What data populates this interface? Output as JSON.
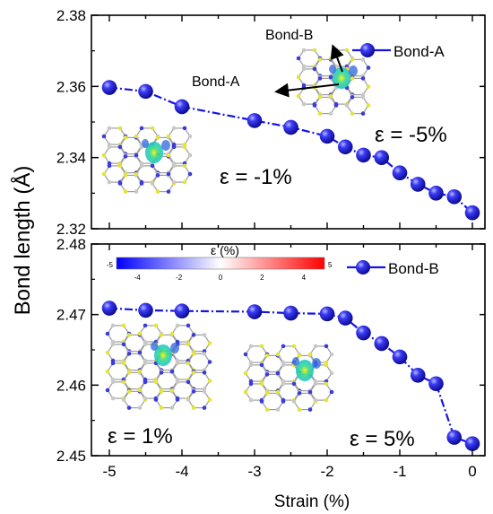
{
  "figure": {
    "ylabel": "Bond length (Å)",
    "xlabel": "Strain (%)",
    "colorbar": {
      "title": "ε (%)",
      "ticks": [
        "-5",
        "-4",
        "-2",
        "0",
        "2",
        "4",
        "5"
      ],
      "colors": {
        "low": "#0000ff",
        "mid": "#ffffff",
        "high": "#ff0000"
      }
    },
    "marker_color": "#1414e6"
  },
  "chart_data": [
    {
      "type": "line",
      "panel": "top",
      "ylim": [
        2.32,
        2.38
      ],
      "xlim": [
        -5,
        0
      ],
      "yticks": [
        "2.32",
        "2.34",
        "2.36",
        "2.38"
      ],
      "series": [
        {
          "name": "Bond-A",
          "x": [
            -5.0,
            -4.5,
            -4.0,
            -3.0,
            -2.5,
            -2.0,
            -1.75,
            -1.5,
            -1.25,
            -1.0,
            -0.75,
            -0.5,
            -0.25,
            0.0
          ],
          "values": [
            2.3597,
            2.3586,
            2.3543,
            2.3504,
            2.3485,
            2.346,
            2.343,
            2.3407,
            2.34,
            2.3357,
            2.3325,
            2.33,
            2.329,
            2.3245
          ]
        }
      ],
      "annotations": [
        "Bond-B",
        "Bond-A",
        "ε = -5%",
        "ε = -1%"
      ]
    },
    {
      "type": "line",
      "panel": "bottom",
      "ylim": [
        2.45,
        2.48
      ],
      "xlim": [
        -5,
        0
      ],
      "yticks": [
        "2.45",
        "2.46",
        "2.47",
        "2.48"
      ],
      "xticks": [
        "-5",
        "-4",
        "-3",
        "-2",
        "-1",
        "0"
      ],
      "series": [
        {
          "name": "Bond-B",
          "x": [
            -5.0,
            -4.5,
            -4.0,
            -3.0,
            -2.5,
            -2.0,
            -1.75,
            -1.5,
            -1.25,
            -1.0,
            -0.75,
            -0.5,
            -0.25,
            0.0
          ],
          "values": [
            2.4709,
            2.4706,
            2.4705,
            2.4704,
            2.4702,
            2.4701,
            2.4695,
            2.4674,
            2.4659,
            2.464,
            2.4614,
            2.4602,
            2.4526,
            2.4517
          ]
        }
      ],
      "annotations": [
        "ε = 1%",
        "ε = 5%"
      ]
    }
  ]
}
